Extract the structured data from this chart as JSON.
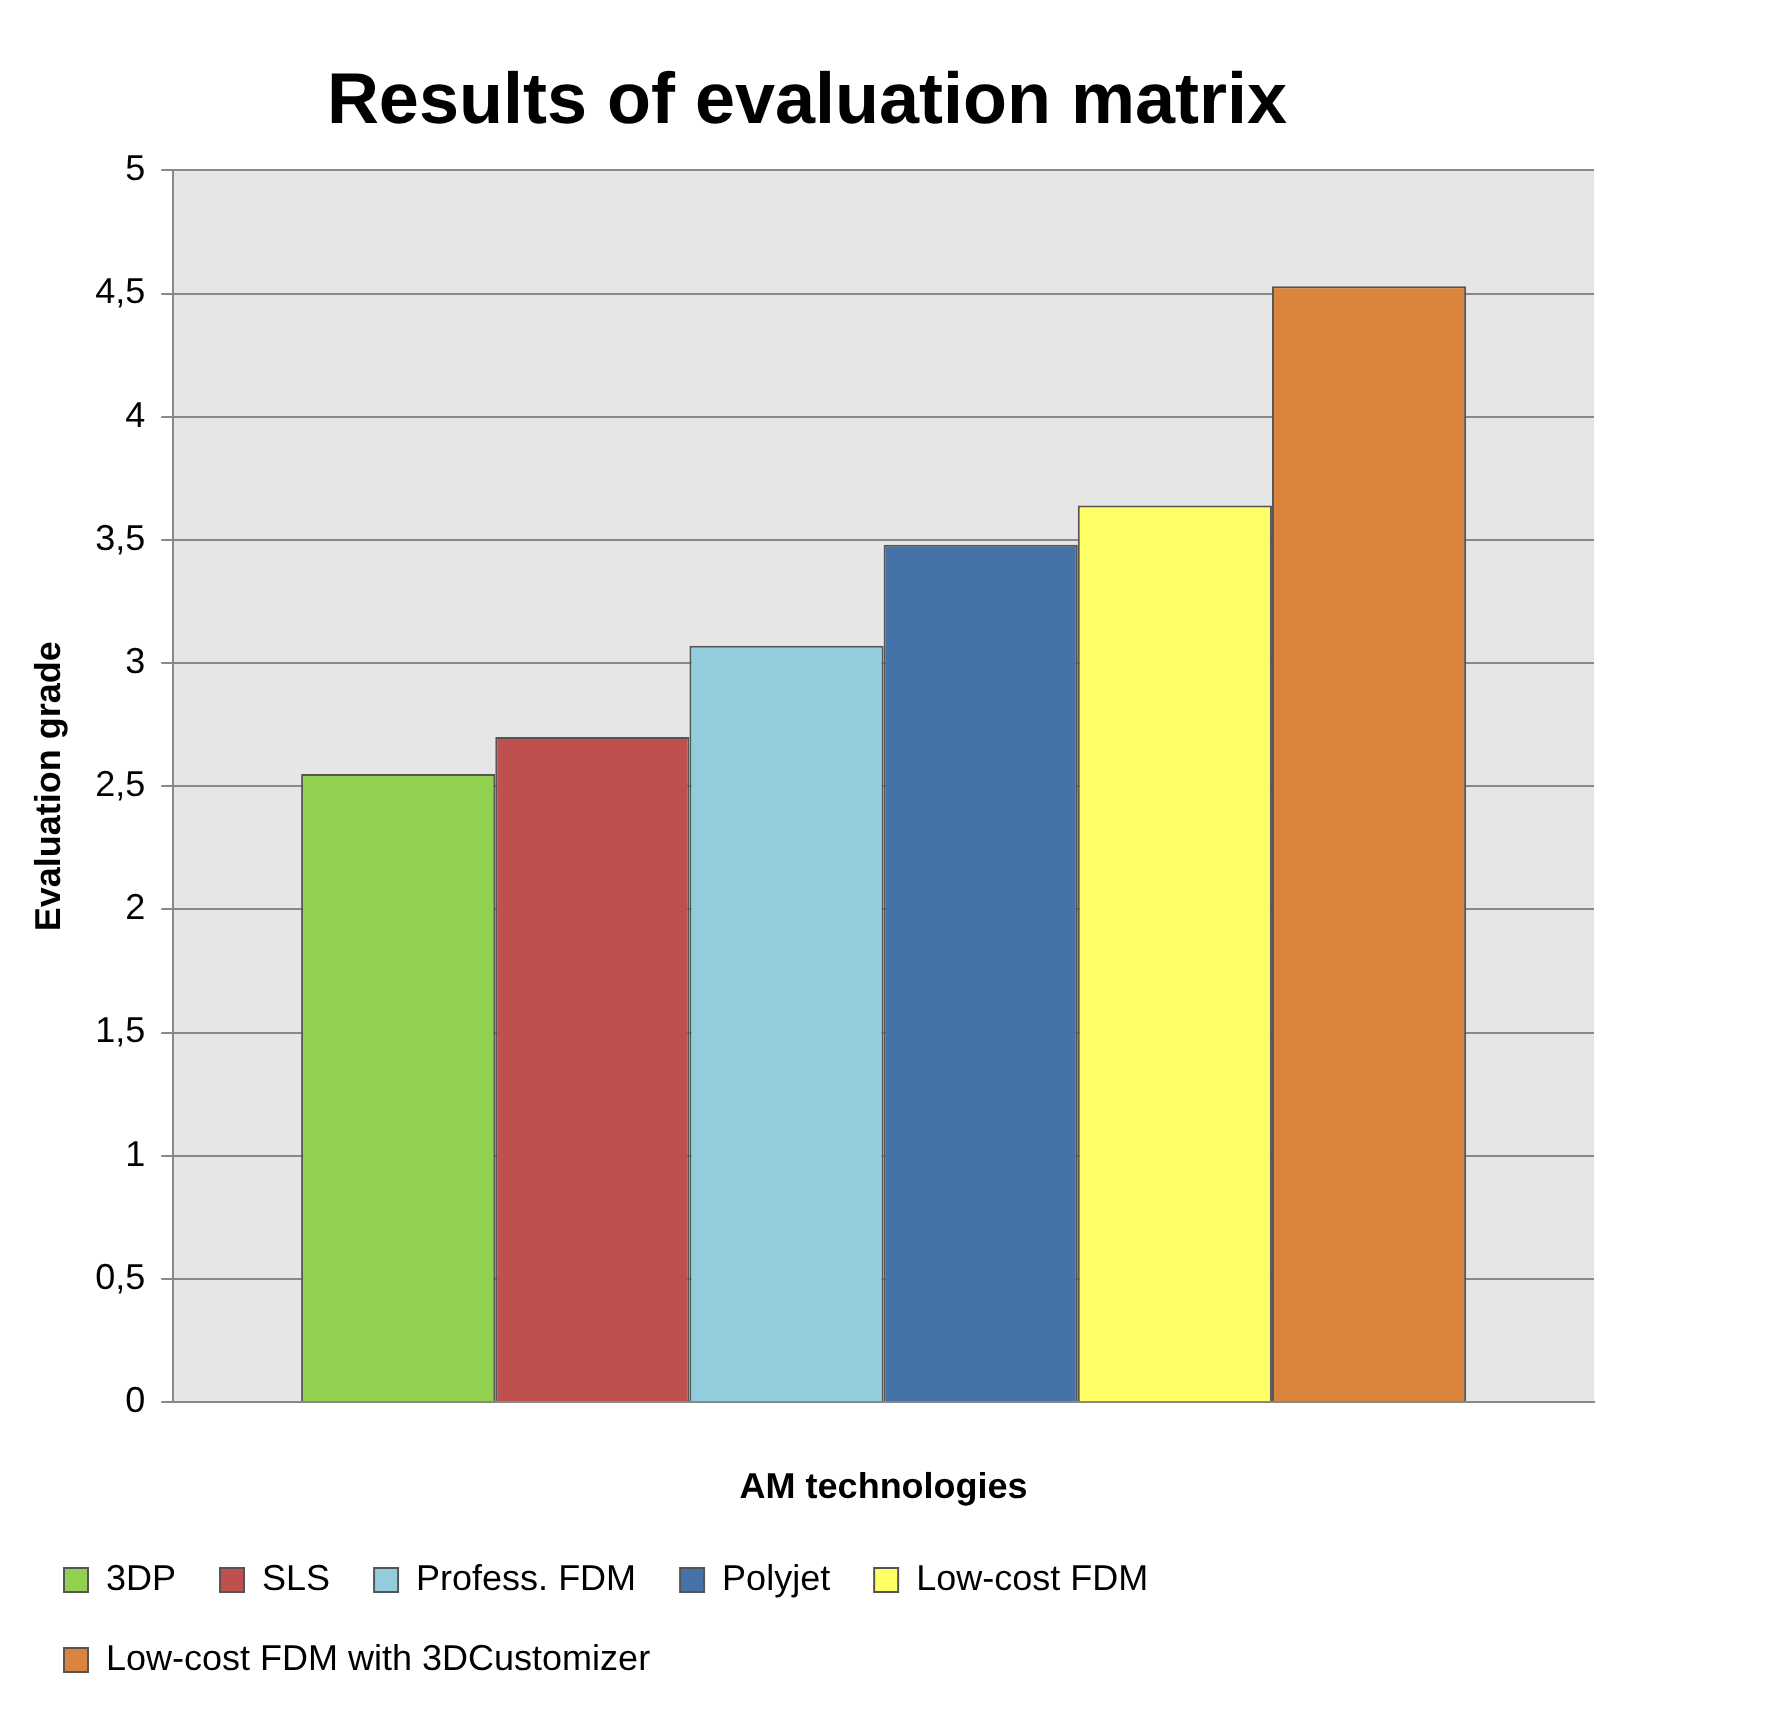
{
  "chart_data": {
    "type": "bar",
    "title": "Results of evaluation matrix",
    "xlabel": "AM technologies",
    "ylabel": "Evaluation grade",
    "categories": [
      null
    ],
    "series": [
      {
        "name": "3DP",
        "color": "#92d050",
        "values": [
          2.55
        ]
      },
      {
        "name": "SLS",
        "color": "#c0504d",
        "values": [
          2.7
        ]
      },
      {
        "name": "Profess. FDM",
        "color": "#93cddd",
        "values": [
          3.07
        ]
      },
      {
        "name": "Polyjet",
        "color": "#4573a7",
        "values": [
          3.48
        ]
      },
      {
        "name": "Low-cost FDM",
        "color": "#ffff66",
        "values": [
          3.64
        ]
      },
      {
        "name": "Low-cost FDM with 3DCustomizer",
        "color": "#db843d",
        "values": [
          4.53
        ]
      }
    ],
    "ylim": [
      0,
      5
    ],
    "yticks": [
      0,
      {
        "value": 0.5,
        "label": "0,5"
      },
      1,
      {
        "value": 1.5,
        "label": "1,5"
      },
      2,
      {
        "value": 2.5,
        "label": "2,5"
      },
      3,
      {
        "value": 3.5,
        "label": "3,5"
      },
      4,
      {
        "value": 4.5,
        "label": "4,5"
      },
      5
    ],
    "grid": "y",
    "legend": "bottom"
  }
}
